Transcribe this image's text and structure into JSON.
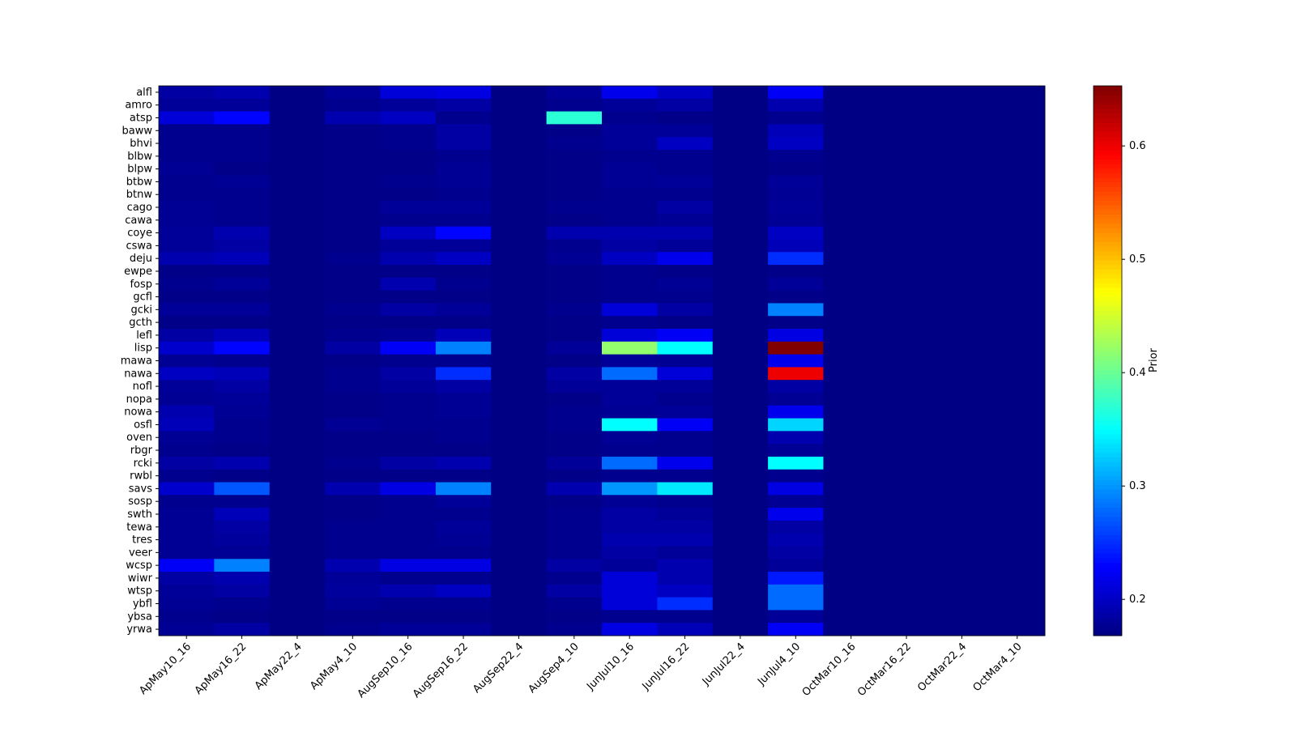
{
  "chart_data": {
    "type": "heatmap",
    "colormap": "jet",
    "colorbar_label": "Prior",
    "columns": [
      "ApMay10_16",
      "ApMay16_22",
      "ApMay22_4",
      "ApMay4_10",
      "AugSep10_16",
      "AugSep16_22",
      "AugSep22_4",
      "AugSep4_10",
      "JunJul10_16",
      "JunJul16_22",
      "JunJul22_4",
      "JunJul4_10",
      "OctMar10_16",
      "OctMar16_22",
      "OctMar22_4",
      "OctMar4_10"
    ],
    "rows": [
      "alfl",
      "amro",
      "atsp",
      "baww",
      "bhvi",
      "blbw",
      "blpw",
      "btbw",
      "btnw",
      "cago",
      "cawa",
      "coye",
      "cswa",
      "deju",
      "ewpe",
      "fosp",
      "gcfl",
      "gcki",
      "gcth",
      "lefl",
      "lisp",
      "mawa",
      "nawa",
      "nofl",
      "nopa",
      "nowa",
      "osfl",
      "oven",
      "rbgr",
      "rcki",
      "rwbl",
      "savs",
      "sosp",
      "swth",
      "tewa",
      "tres",
      "veer",
      "wcsp",
      "wiwr",
      "wtsp",
      "ybfl",
      "ybsa",
      "yrwa"
    ],
    "values": [
      [
        0.185,
        0.19,
        0.17,
        0.18,
        0.21,
        0.215,
        0.17,
        0.18,
        0.22,
        0.2,
        0.17,
        0.225,
        0.17,
        0.17,
        0.17,
        0.17
      ],
      [
        0.18,
        0.18,
        0.17,
        0.175,
        0.18,
        0.185,
        0.17,
        0.175,
        0.18,
        0.185,
        0.17,
        0.19,
        0.17,
        0.17,
        0.17,
        0.17
      ],
      [
        0.21,
        0.23,
        0.17,
        0.19,
        0.2,
        0.175,
        0.17,
        0.37,
        0.175,
        0.172,
        0.17,
        0.175,
        0.17,
        0.17,
        0.17,
        0.17
      ],
      [
        0.175,
        0.175,
        0.17,
        0.172,
        0.175,
        0.185,
        0.17,
        0.172,
        0.18,
        0.18,
        0.17,
        0.195,
        0.17,
        0.17,
        0.17,
        0.17
      ],
      [
        0.175,
        0.175,
        0.17,
        0.172,
        0.175,
        0.185,
        0.17,
        0.175,
        0.18,
        0.2,
        0.17,
        0.2,
        0.17,
        0.17,
        0.17,
        0.17
      ],
      [
        0.175,
        0.175,
        0.17,
        0.172,
        0.172,
        0.175,
        0.17,
        0.172,
        0.175,
        0.175,
        0.17,
        0.175,
        0.17,
        0.17,
        0.17,
        0.17
      ],
      [
        0.178,
        0.172,
        0.17,
        0.172,
        0.172,
        0.178,
        0.17,
        0.172,
        0.178,
        0.175,
        0.17,
        0.172,
        0.17,
        0.17,
        0.17,
        0.17
      ],
      [
        0.175,
        0.178,
        0.17,
        0.172,
        0.175,
        0.178,
        0.17,
        0.172,
        0.178,
        0.18,
        0.17,
        0.18,
        0.17,
        0.17,
        0.17,
        0.17
      ],
      [
        0.175,
        0.175,
        0.17,
        0.172,
        0.172,
        0.175,
        0.17,
        0.172,
        0.175,
        0.175,
        0.17,
        0.178,
        0.17,
        0.17,
        0.17,
        0.17
      ],
      [
        0.178,
        0.175,
        0.17,
        0.172,
        0.18,
        0.18,
        0.17,
        0.175,
        0.175,
        0.185,
        0.17,
        0.18,
        0.17,
        0.17,
        0.17,
        0.17
      ],
      [
        0.178,
        0.175,
        0.17,
        0.172,
        0.175,
        0.175,
        0.17,
        0.172,
        0.175,
        0.178,
        0.17,
        0.178,
        0.17,
        0.17,
        0.17,
        0.17
      ],
      [
        0.18,
        0.19,
        0.17,
        0.172,
        0.2,
        0.23,
        0.17,
        0.19,
        0.19,
        0.19,
        0.17,
        0.2,
        0.17,
        0.17,
        0.17,
        0.17
      ],
      [
        0.18,
        0.185,
        0.17,
        0.172,
        0.18,
        0.18,
        0.17,
        0.175,
        0.185,
        0.18,
        0.17,
        0.195,
        0.17,
        0.17,
        0.17,
        0.17
      ],
      [
        0.19,
        0.195,
        0.17,
        0.175,
        0.19,
        0.2,
        0.17,
        0.178,
        0.2,
        0.22,
        0.17,
        0.25,
        0.17,
        0.17,
        0.17,
        0.17
      ],
      [
        0.172,
        0.172,
        0.17,
        0.172,
        0.172,
        0.172,
        0.17,
        0.172,
        0.175,
        0.172,
        0.17,
        0.172,
        0.17,
        0.17,
        0.17,
        0.17
      ],
      [
        0.175,
        0.18,
        0.17,
        0.172,
        0.19,
        0.175,
        0.17,
        0.172,
        0.175,
        0.178,
        0.17,
        0.18,
        0.17,
        0.17,
        0.17,
        0.17
      ],
      [
        0.172,
        0.172,
        0.17,
        0.172,
        0.172,
        0.172,
        0.17,
        0.172,
        0.175,
        0.175,
        0.17,
        0.172,
        0.17,
        0.17,
        0.17,
        0.17
      ],
      [
        0.18,
        0.18,
        0.17,
        0.175,
        0.185,
        0.18,
        0.17,
        0.175,
        0.21,
        0.185,
        0.17,
        0.29,
        0.17,
        0.17,
        0.17,
        0.17
      ],
      [
        0.172,
        0.172,
        0.17,
        0.172,
        0.172,
        0.172,
        0.17,
        0.172,
        0.175,
        0.172,
        0.17,
        0.172,
        0.17,
        0.17,
        0.17,
        0.17
      ],
      [
        0.185,
        0.195,
        0.17,
        0.175,
        0.178,
        0.195,
        0.17,
        0.172,
        0.21,
        0.225,
        0.17,
        0.215,
        0.17,
        0.17,
        0.17,
        0.17
      ],
      [
        0.205,
        0.23,
        0.17,
        0.185,
        0.225,
        0.29,
        0.17,
        0.18,
        0.42,
        0.35,
        0.17,
        0.653,
        0.17,
        0.17,
        0.17,
        0.17
      ],
      [
        0.178,
        0.175,
        0.17,
        0.172,
        0.175,
        0.175,
        0.17,
        0.172,
        0.18,
        0.178,
        0.17,
        0.22,
        0.17,
        0.17,
        0.17,
        0.17
      ],
      [
        0.2,
        0.195,
        0.17,
        0.175,
        0.185,
        0.25,
        0.17,
        0.185,
        0.28,
        0.21,
        0.17,
        0.6,
        0.17,
        0.17,
        0.17,
        0.17
      ],
      [
        0.18,
        0.185,
        0.17,
        0.175,
        0.18,
        0.185,
        0.17,
        0.18,
        0.18,
        0.18,
        0.17,
        0.185,
        0.17,
        0.17,
        0.17,
        0.17
      ],
      [
        0.178,
        0.18,
        0.17,
        0.172,
        0.175,
        0.178,
        0.17,
        0.172,
        0.18,
        0.175,
        0.17,
        0.178,
        0.17,
        0.17,
        0.17,
        0.17
      ],
      [
        0.19,
        0.178,
        0.17,
        0.172,
        0.175,
        0.178,
        0.17,
        0.175,
        0.178,
        0.18,
        0.17,
        0.22,
        0.17,
        0.17,
        0.17,
        0.17
      ],
      [
        0.195,
        0.175,
        0.17,
        0.178,
        0.175,
        0.175,
        0.17,
        0.175,
        0.35,
        0.225,
        0.17,
        0.33,
        0.17,
        0.17,
        0.17,
        0.17
      ],
      [
        0.178,
        0.175,
        0.17,
        0.172,
        0.172,
        0.175,
        0.17,
        0.172,
        0.178,
        0.175,
        0.17,
        0.19,
        0.17,
        0.17,
        0.17,
        0.17
      ],
      [
        0.175,
        0.172,
        0.17,
        0.172,
        0.172,
        0.172,
        0.17,
        0.172,
        0.175,
        0.175,
        0.17,
        0.178,
        0.17,
        0.17,
        0.17,
        0.17
      ],
      [
        0.185,
        0.19,
        0.17,
        0.175,
        0.185,
        0.19,
        0.17,
        0.18,
        0.28,
        0.22,
        0.17,
        0.35,
        0.17,
        0.17,
        0.17,
        0.17
      ],
      [
        0.175,
        0.172,
        0.17,
        0.172,
        0.172,
        0.172,
        0.17,
        0.172,
        0.175,
        0.175,
        0.17,
        0.175,
        0.17,
        0.17,
        0.17,
        0.17
      ],
      [
        0.205,
        0.27,
        0.17,
        0.19,
        0.215,
        0.29,
        0.17,
        0.19,
        0.3,
        0.34,
        0.17,
        0.215,
        0.17,
        0.17,
        0.17,
        0.17
      ],
      [
        0.175,
        0.175,
        0.17,
        0.172,
        0.175,
        0.18,
        0.17,
        0.172,
        0.178,
        0.175,
        0.17,
        0.178,
        0.17,
        0.17,
        0.17,
        0.17
      ],
      [
        0.178,
        0.195,
        0.17,
        0.172,
        0.175,
        0.175,
        0.17,
        0.175,
        0.185,
        0.18,
        0.17,
        0.22,
        0.17,
        0.17,
        0.17,
        0.17
      ],
      [
        0.178,
        0.185,
        0.17,
        0.175,
        0.175,
        0.18,
        0.17,
        0.175,
        0.185,
        0.185,
        0.17,
        0.185,
        0.17,
        0.17,
        0.17,
        0.17
      ],
      [
        0.178,
        0.182,
        0.17,
        0.175,
        0.175,
        0.178,
        0.17,
        0.175,
        0.19,
        0.19,
        0.17,
        0.19,
        0.17,
        0.17,
        0.17,
        0.17
      ],
      [
        0.178,
        0.178,
        0.17,
        0.175,
        0.175,
        0.175,
        0.17,
        0.175,
        0.185,
        0.18,
        0.17,
        0.185,
        0.17,
        0.17,
        0.17,
        0.17
      ],
      [
        0.225,
        0.29,
        0.17,
        0.19,
        0.215,
        0.215,
        0.17,
        0.185,
        0.18,
        0.19,
        0.17,
        0.18,
        0.17,
        0.17,
        0.17,
        0.17
      ],
      [
        0.185,
        0.19,
        0.17,
        0.18,
        0.175,
        0.175,
        0.17,
        0.175,
        0.21,
        0.19,
        0.17,
        0.24,
        0.17,
        0.17,
        0.17,
        0.17
      ],
      [
        0.18,
        0.185,
        0.17,
        0.182,
        0.19,
        0.2,
        0.17,
        0.185,
        0.21,
        0.2,
        0.17,
        0.28,
        0.17,
        0.17,
        0.17,
        0.17
      ],
      [
        0.178,
        0.175,
        0.17,
        0.178,
        0.175,
        0.175,
        0.17,
        0.175,
        0.21,
        0.25,
        0.17,
        0.28,
        0.17,
        0.17,
        0.17,
        0.17
      ],
      [
        0.175,
        0.172,
        0.17,
        0.172,
        0.172,
        0.172,
        0.17,
        0.172,
        0.175,
        0.175,
        0.17,
        0.18,
        0.17,
        0.17,
        0.17,
        0.17
      ],
      [
        0.178,
        0.185,
        0.17,
        0.175,
        0.18,
        0.18,
        0.17,
        0.175,
        0.215,
        0.195,
        0.17,
        0.225,
        0.17,
        0.17,
        0.17,
        0.17
      ]
    ],
    "clim": [
      0.168,
      0.653
    ],
    "cticks": [
      0.2,
      0.3,
      0.4,
      0.5,
      0.6
    ]
  }
}
